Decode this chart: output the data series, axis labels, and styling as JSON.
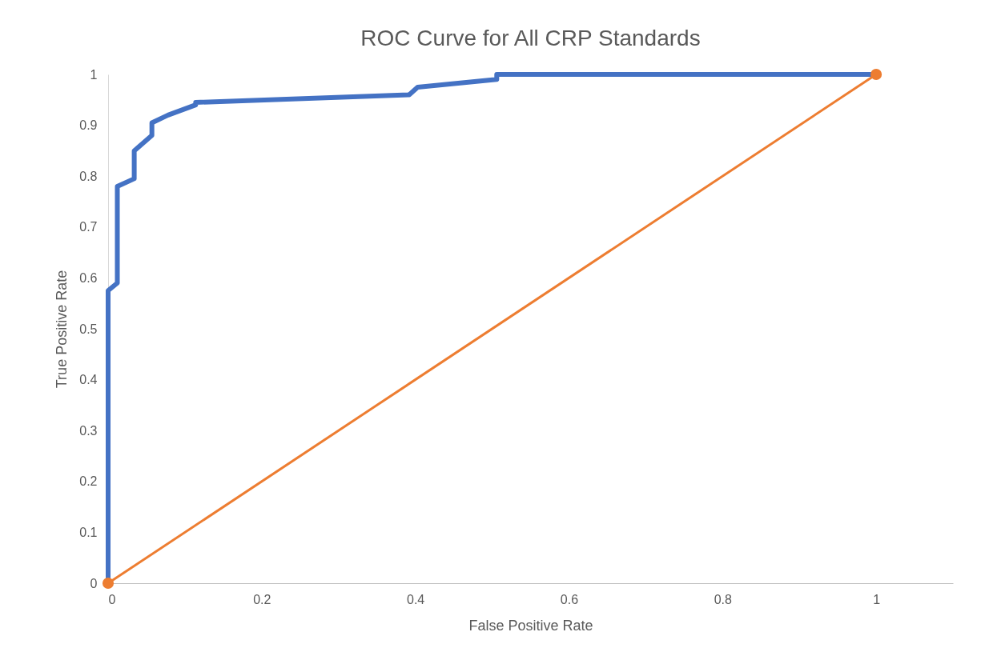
{
  "chart_data": {
    "type": "line",
    "title": "ROC Curve for All CRP Standards",
    "xlabel": "False Positive Rate",
    "ylabel": "True Positive Rate",
    "xlim": [
      0,
      1.1
    ],
    "xticks": [
      0,
      0.2,
      0.4,
      0.6,
      0.8,
      1
    ],
    "ylim": [
      0,
      1
    ],
    "yticks": [
      0,
      0.1,
      0.2,
      0.3,
      0.4,
      0.5,
      0.6,
      0.7,
      0.8,
      0.9,
      1
    ],
    "grid": false,
    "marker": "none",
    "line_style": "solid",
    "series": [
      {
        "color": "#4472c4",
        "x": [
          0,
          0,
          0.012,
          0.012,
          0.034,
          0.034,
          0.057,
          0.057,
          0.078,
          0.114,
          0.114,
          0.392,
          0.403,
          0.506,
          0.506,
          1
        ],
        "values": [
          0,
          0.575,
          0.59,
          0.78,
          0.795,
          0.85,
          0.88,
          0.905,
          0.92,
          0.94,
          0.945,
          0.96,
          0.975,
          0.99,
          1,
          1
        ]
      },
      {
        "color": "#ed7d31",
        "marker": "circle",
        "x": [
          0,
          1
        ],
        "values": [
          0,
          1
        ]
      }
    ]
  }
}
